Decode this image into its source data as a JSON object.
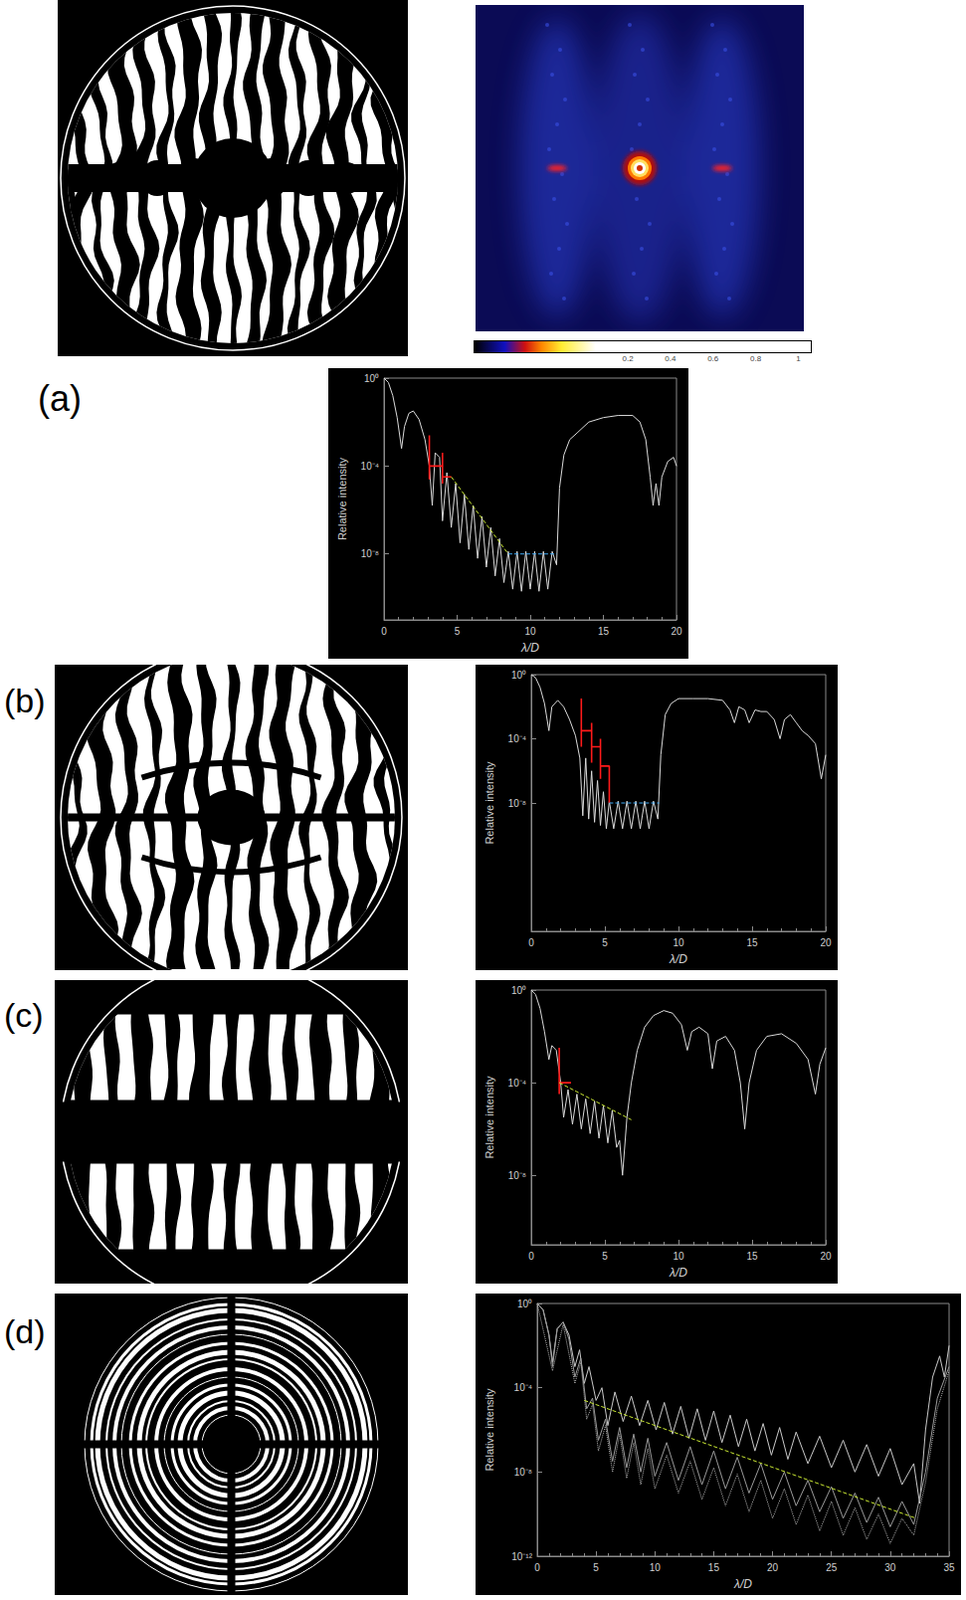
{
  "psf_image": {
    "colorbar": {
      "ticks": [
        0.2,
        0.4,
        0.6,
        0.8,
        1
      ]
    }
  },
  "chart_data": [
    {
      "type": "line",
      "title": "(a)",
      "x_label": "λ/D",
      "y_label": "Relative intensity",
      "log": "y",
      "grid": false,
      "xlim": [
        0,
        20
      ],
      "xticks": [
        0,
        5,
        10,
        15,
        20
      ],
      "ylim": [
        1e-11,
        1
      ],
      "yticks": [
        {
          "value": 1,
          "label": "10⁰"
        },
        {
          "value": 0.0001,
          "label": "10⁻⁴"
        },
        {
          "value": 1e-08,
          "label": "10⁻⁸"
        }
      ],
      "series": [
        {
          "color": "#d9d9d9",
          "line_style": "solid",
          "x": [
            0,
            0.3,
            0.6,
            0.9,
            1.2,
            1.4,
            1.7,
            2.0,
            2.4,
            2.8,
            3.1,
            3.3,
            3.5,
            3.8,
            4.0,
            4.3,
            4.6,
            4.9,
            5.2,
            5.5,
            5.8,
            6.1,
            6.4,
            6.7,
            7.0,
            7.3,
            7.6,
            7.9,
            8.2,
            8.5,
            8.8,
            9.1,
            9.4,
            9.7,
            10.0,
            10.3,
            10.6,
            10.9,
            11.2,
            11.5,
            11.8,
            12.0,
            12.3,
            12.7,
            13.2,
            14.0,
            15.0,
            16.0,
            17.0,
            17.5,
            17.9,
            18.2,
            18.4,
            18.6,
            18.8,
            19.0,
            19.4,
            19.8,
            20.0
          ],
          "values": [
            1,
            0.63,
            0.16,
            0.016,
            0.00063,
            0.0063,
            0.025,
            0.032,
            0.013,
            0.0016,
            0.0001,
            1.6e-06,
            0.0004,
            0.00025,
            3.2e-07,
            5e-05,
            1.6e-07,
            1.6e-05,
            3.2e-08,
            5e-06,
            1.6e-08,
            1.6e-06,
            6.3e-09,
            5e-07,
            2.5e-09,
            1.6e-07,
            1e-09,
            5e-08,
            5e-10,
            1.3e-08,
            2.5e-10,
            1.3e-08,
            2e-10,
            1.3e-08,
            2.5e-10,
            1.3e-08,
            2e-10,
            1.3e-08,
            2.5e-10,
            1.3e-08,
            3.2e-09,
            1e-05,
            0.00032,
            0.0016,
            0.0032,
            0.01,
            0.016,
            0.02,
            0.02,
            0.01,
            0.0016,
            3.2e-05,
            1.6e-06,
            1.6e-05,
            1.6e-06,
            3.2e-05,
            0.00016,
            0.00025,
            0.0001
          ]
        },
        {
          "color": "#ff1a1a",
          "line_style": "solid",
          "x": [
            3.1,
            3.1,
            3.1,
            3.1,
            4.0,
            4.0,
            4.0,
            4.0,
            4.0,
            4.0,
            4.6
          ],
          "values": [
            0.0025,
            2.5e-05,
            null,
            0.0001,
            0.0001,
            null,
            0.0004,
            1.6e-05,
            null,
            3.2e-05,
            3.2e-05
          ]
        },
        {
          "color": "#c8e632",
          "line_style": "dashed",
          "x": [
            4.6,
            8.5
          ],
          "values": [
            3.2e-05,
            1e-08
          ]
        },
        {
          "color": "#3fa9f5",
          "line_style": "dashed",
          "x": [
            8.5,
            11.8
          ],
          "values": [
            1e-08,
            1e-08
          ]
        }
      ]
    },
    {
      "type": "line",
      "title": "(b)",
      "x_label": "λ/D",
      "y_label": "Relative intensity",
      "log": "y",
      "grid": false,
      "xlim": [
        0,
        20
      ],
      "xticks": [
        0,
        5,
        10,
        15,
        20
      ],
      "ylim": [
        1e-16,
        1
      ],
      "yticks": [
        {
          "value": 1,
          "label": "10⁰"
        },
        {
          "value": 0.0001,
          "label": "10⁻⁴"
        },
        {
          "value": 1e-08,
          "label": "10⁻⁸"
        }
      ],
      "series": [
        {
          "color": "#d9d9d9",
          "line_style": "solid",
          "x": [
            0,
            0.3,
            0.6,
            0.9,
            1.2,
            1.4,
            1.8,
            2.2,
            2.6,
            3.0,
            3.3,
            3.5,
            3.7,
            3.9,
            4.1,
            4.3,
            4.5,
            4.7,
            4.9,
            5.1,
            5.3,
            5.6,
            5.9,
            6.2,
            6.5,
            6.8,
            7.1,
            7.4,
            7.7,
            8.0,
            8.3,
            8.6,
            8.8,
            9.1,
            9.5,
            10,
            11,
            12,
            13,
            13.5,
            13.8,
            14.1,
            14.5,
            14.8,
            15.2,
            15.6,
            16.0,
            16.5,
            16.9,
            17.2,
            17.6,
            18.0,
            18.4,
            18.8,
            19.3,
            19.7,
            20
          ],
          "values": [
            1,
            0.63,
            0.16,
            0.016,
            0.00032,
            0.01,
            0.025,
            0.01,
            0.0016,
            0.00016,
            6.3e-06,
            1.6e-09,
            6.3e-06,
            1e-09,
            1e-06,
            6.3e-10,
            2.5e-07,
            4e-10,
            5e-08,
            2.5e-10,
            1.3e-08,
            2.5e-10,
            1.3e-08,
            2.5e-10,
            1.3e-08,
            2.5e-10,
            1.3e-08,
            2.5e-10,
            1.3e-08,
            2.5e-10,
            1.3e-08,
            1e-09,
            1e-05,
            0.0032,
            0.016,
            0.032,
            0.032,
            0.032,
            0.025,
            0.0063,
            0.001,
            0.01,
            0.0063,
            0.001,
            0.0063,
            0.005,
            0.005,
            0.0016,
            0.0001,
            0.0016,
            0.0032,
            0.001,
            0.00032,
            0.00016,
            5e-05,
            3.2e-07,
            1e-05
          ]
        },
        {
          "color": "#ff1a1a",
          "line_style": "solid",
          "x": [
            3.4,
            3.4,
            3.4,
            3.4,
            4.1,
            4.1,
            4.1,
            4.1,
            4.1,
            4.1,
            4.7,
            4.7,
            4.7,
            4.7,
            4.7,
            4.7,
            5.3,
            5.3
          ],
          "values": [
            0.032,
            3.2e-05,
            null,
            0.00032,
            0.00032,
            null,
            0.001,
            3.2e-06,
            null,
            3.2e-05,
            3.2e-05,
            null,
            0.0001,
            3.2e-07,
            null,
            2e-06,
            2e-06,
            1e-08
          ]
        },
        {
          "color": "#3fa9f5",
          "line_style": "dashed",
          "x": [
            5.3,
            8.7
          ],
          "values": [
            1e-08,
            1e-08
          ]
        }
      ]
    },
    {
      "type": "line",
      "title": "(c)",
      "x_label": "λ/D",
      "y_label": "Relative intensity",
      "log": "y",
      "grid": false,
      "xlim": [
        0,
        20
      ],
      "xticks": [
        0,
        5,
        10,
        15,
        20
      ],
      "ylim": [
        1e-11,
        1
      ],
      "yticks": [
        {
          "value": 1,
          "label": "10⁰"
        },
        {
          "value": 0.0001,
          "label": "10⁻⁴"
        },
        {
          "value": 1e-08,
          "label": "10⁻⁸"
        }
      ],
      "series": [
        {
          "color": "#d9d9d9",
          "line_style": "solid",
          "x": [
            0,
            0.3,
            0.6,
            0.9,
            1.2,
            1.4,
            1.7,
            2.0,
            2.2,
            2.5,
            2.8,
            3.1,
            3.4,
            3.7,
            4.0,
            4.3,
            4.6,
            4.9,
            5.2,
            5.5,
            5.8,
            6.0,
            6.2,
            6.5,
            6.8,
            7.2,
            7.7,
            8.3,
            9.0,
            9.6,
            10.2,
            10.6,
            10.9,
            11.4,
            12.0,
            12.3,
            12.6,
            13.2,
            13.8,
            14.2,
            14.5,
            14.8,
            15.3,
            16.0,
            17.0,
            18.0,
            18.8,
            19.3,
            19.6,
            20
          ],
          "values": [
            1,
            0.63,
            0.16,
            0.016,
            0.001,
            0.004,
            0.0025,
            0.0001,
            3.2e-06,
            5e-05,
            1.6e-06,
            3.2e-05,
            1e-06,
            2e-05,
            6.3e-07,
            1.6e-05,
            4e-07,
            1e-05,
            2.5e-07,
            6.3e-06,
            1.6e-07,
            3.2e-07,
            1e-08,
            3.2e-06,
            0.0001,
            0.0025,
            0.025,
            0.079,
            0.13,
            0.1,
            0.032,
            0.0025,
            0.016,
            0.025,
            0.013,
            0.0004,
            0.0063,
            0.01,
            0.0025,
            0.0001,
            1e-06,
            0.0001,
            0.0025,
            0.01,
            0.013,
            0.005,
            0.001,
            3.2e-05,
            0.00063,
            0.0032
          ]
        },
        {
          "color": "#ff1a1a",
          "line_style": "solid",
          "x": [
            1.9,
            1.9,
            1.9,
            1.9,
            2.7
          ],
          "values": [
            0.0032,
            3.2e-05,
            null,
            0.0001,
            0.0001
          ]
        },
        {
          "color": "#c8e632",
          "line_style": "dashed",
          "x": [
            1.9,
            6.8
          ],
          "values": [
            0.0001,
            2.5e-06
          ]
        }
      ]
    },
    {
      "type": "line",
      "title": "(d)",
      "x_label": "λ/D",
      "y_label": "Relative intensity",
      "log": "y",
      "grid": false,
      "xlim": [
        0,
        35
      ],
      "xticks": [
        0,
        5,
        10,
        15,
        20,
        25,
        30,
        35
      ],
      "ylim": [
        1e-12,
        1
      ],
      "yticks": [
        {
          "value": 1,
          "label": "10⁰"
        },
        {
          "value": 0.0001,
          "label": "10⁻⁴"
        },
        {
          "value": 1e-08,
          "label": "10⁻⁸"
        },
        {
          "value": 1e-12,
          "label": "10⁻¹²"
        }
      ],
      "series": [
        {
          "color": "#c8c8c8",
          "line_style": "solid",
          "x": [
            0,
            0.5,
            1.0,
            1.3,
            1.7,
            2.2,
            2.7,
            3.2,
            3.6,
            4.0,
            4.4,
            5.0,
            5.5,
            6.0,
            6.6,
            7.3,
            8.0,
            8.7,
            9.4,
            10.1,
            10.8,
            11.5,
            12.2,
            12.9,
            13.6,
            14.3,
            15.0,
            15.7,
            16.4,
            17.1,
            17.8,
            18.5,
            19.2,
            19.9,
            20.6,
            21.3,
            22,
            23,
            24,
            25,
            26,
            27,
            28,
            29,
            30,
            31,
            32,
            32.5,
            33,
            33.6,
            34.2,
            34.6,
            35
          ],
          "values": [
            1,
            0.5,
            0.032,
            0.0016,
            0.063,
            0.13,
            0.032,
            0.001,
            0.0063,
            0.00016,
            0.001,
            2.5e-05,
            0.0001,
            1.6e-06,
            6.3e-05,
            2.5e-06,
            4e-05,
            1.6e-06,
            2.5e-05,
            1e-06,
            2e-05,
            6.3e-07,
            1.3e-05,
            4e-07,
            1e-05,
            3.2e-07,
            7.9e-06,
            2.5e-07,
            5e-06,
            1.6e-07,
            3.2e-06,
            1e-07,
            2e-06,
            6.3e-08,
            1.3e-06,
            4e-08,
            7.9e-07,
            2.5e-08,
            5e-07,
            1.6e-08,
            3.2e-07,
            1e-08,
            2e-07,
            6.3e-09,
            1.3e-07,
            2.5e-09,
            2.5e-08,
            3.2e-10,
            1e-06,
            0.00032,
            0.0032,
            0.00032,
            0.01
          ]
        },
        {
          "color": "#9a9a9a",
          "line_style": "solid",
          "x": [
            0,
            0.5,
            1.0,
            1.3,
            1.7,
            2.2,
            2.7,
            3.2,
            3.7,
            4.2,
            4.7,
            5.2,
            5.8,
            6.4,
            7.0,
            7.6,
            8.2,
            8.8,
            9.4,
            10,
            11,
            12,
            13,
            14,
            15,
            16,
            17,
            18,
            19,
            20,
            21,
            22,
            23,
            24,
            25,
            26,
            27,
            28,
            29,
            30,
            31,
            32,
            33,
            34,
            35
          ],
          "values": [
            1,
            0.5,
            0.032,
            0.001,
            0.063,
            0.13,
            0.02,
            0.00032,
            0.0025,
            1e-05,
            3.2e-05,
            3.2e-07,
            3.2e-06,
            3.2e-08,
            1.3e-06,
            1.6e-08,
            6.3e-07,
            1e-08,
            4e-07,
            6.3e-09,
            2.5e-07,
            4e-09,
            1.6e-07,
            2.5e-09,
            1e-07,
            1.6e-09,
            5e-08,
            1e-09,
            2.5e-08,
            5e-10,
            1e-08,
            2.5e-10,
            4e-09,
            1.3e-10,
            2e-09,
            6.3e-11,
            1e-09,
            4e-11,
            6.3e-10,
            2.5e-11,
            4e-10,
            3.2e-11,
            1e-08,
            3.2e-05,
            0.001
          ]
        },
        {
          "color": "#b4b4b4",
          "line_style": "dotted",
          "x": [
            0,
            1.3,
            2.2,
            3.2,
            3.7,
            4.2,
            4.7,
            5.2,
            5.8,
            6.4,
            7.0,
            7.6,
            8.2,
            8.8,
            9.4,
            10,
            11,
            12,
            13,
            14,
            15,
            16,
            17,
            18,
            19,
            20,
            21,
            22,
            23,
            24,
            25,
            26,
            27,
            28,
            29,
            30,
            31,
            32,
            33,
            34,
            35
          ],
          "values": [
            1,
            0.00063,
            0.1,
            0.00016,
            0.0016,
            3.2e-06,
            1.6e-05,
            1e-07,
            1.6e-06,
            1e-08,
            6.3e-07,
            5e-09,
            2.5e-07,
            2.5e-09,
            1.3e-07,
            1.6e-09,
            6.3e-08,
            1e-09,
            3.2e-08,
            5e-10,
            1.6e-08,
            2.5e-10,
            7.9e-09,
            1.3e-10,
            4e-09,
            6.3e-11,
            1.6e-09,
            3.2e-11,
            7.9e-10,
            1.6e-11,
            4e-10,
            1e-11,
            2e-10,
            6.3e-12,
            1e-10,
            4e-12,
            6.3e-11,
            1e-11,
            3.2e-09,
            1e-05,
            0.00063
          ]
        },
        {
          "color": "#c8e632",
          "line_style": "dashed",
          "x": [
            4,
            32.2
          ],
          "values": [
            2.5e-05,
            6.3e-11
          ]
        }
      ]
    }
  ]
}
